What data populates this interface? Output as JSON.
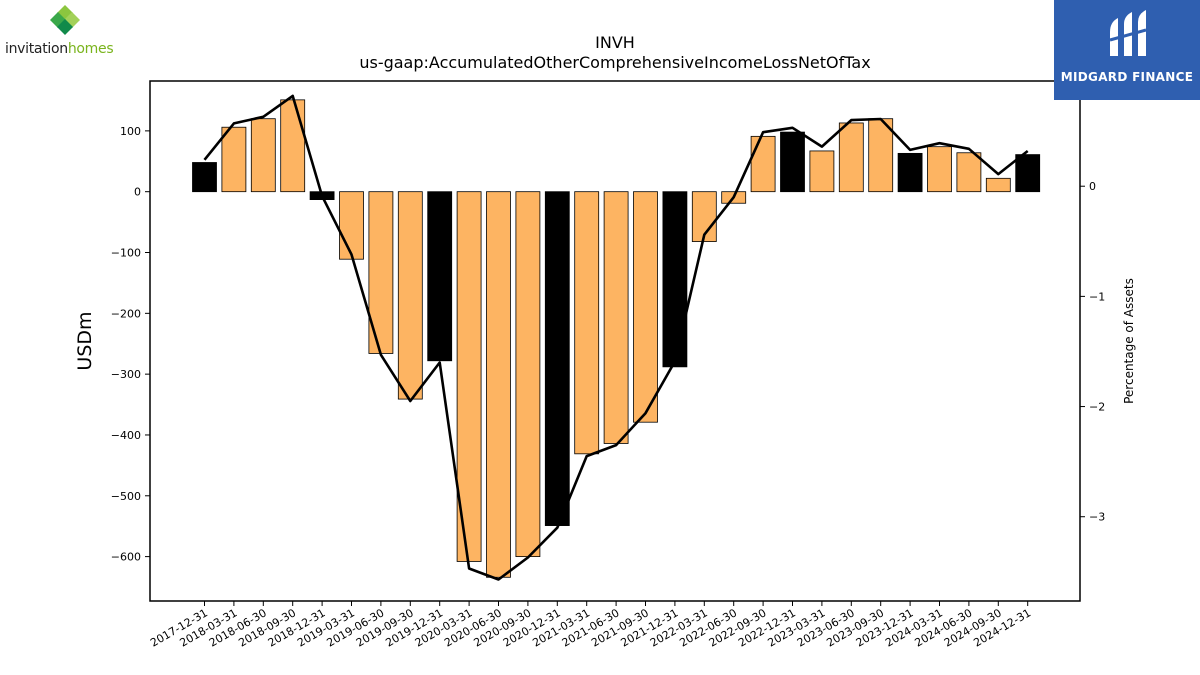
{
  "logos": {
    "left": {
      "word1": "invitation",
      "word2": "homes"
    },
    "right": {
      "text": "MIDGARD FINANCE"
    }
  },
  "chart_data": {
    "type": "bar",
    "title": "INVH",
    "subtitle": "us-gaap:AccumulatedOtherComprehensiveIncomeLossNetOfTax",
    "ylabel": "USDm",
    "y2label": "Percentage of Assets",
    "ylim": [
      -673,
      182
    ],
    "y2lim": [
      -3.765,
      0.955
    ],
    "yticks": [
      100,
      0,
      -100,
      -200,
      -300,
      -400,
      -500,
      -600
    ],
    "ytick_labels": [
      "100",
      "0",
      "−100",
      "−200",
      "−300",
      "−400",
      "−500",
      "−600"
    ],
    "y2ticks": [
      0,
      -1,
      -2,
      -3
    ],
    "y2tick_labels": [
      "0",
      "−1",
      "−2",
      "−3"
    ],
    "grid": false,
    "categories": [
      "2017-12-31",
      "2018-03-31",
      "2018-06-30",
      "2018-09-30",
      "2018-12-31",
      "2019-03-31",
      "2019-06-30",
      "2019-09-30",
      "2019-12-31",
      "2020-03-31",
      "2020-06-30",
      "2020-09-30",
      "2020-12-31",
      "2021-03-31",
      "2021-06-30",
      "2021-09-30",
      "2021-12-31",
      "2022-03-31",
      "2022-06-30",
      "2022-09-30",
      "2022-12-31",
      "2023-03-31",
      "2023-06-30",
      "2023-09-30",
      "2023-12-31",
      "2024-03-31",
      "2024-06-30",
      "2024-09-30",
      "2024-12-31"
    ],
    "series": [
      {
        "kind": "bar",
        "axis": "left",
        "values": [
          48,
          106,
          120,
          151,
          -13,
          -111,
          -266,
          -341,
          -278,
          -608,
          -634,
          -600,
          -549,
          -431,
          -414,
          -379,
          -288,
          -82,
          -19,
          91,
          98,
          67,
          113,
          120,
          63,
          74,
          64,
          22,
          61
        ],
        "year_end_color": "#000000",
        "quarter_color": "#fdb462"
      },
      {
        "kind": "line",
        "axis": "right",
        "values": [
          0.24,
          0.57,
          0.63,
          0.82,
          -0.09,
          -0.62,
          -1.53,
          -1.95,
          -1.6,
          -3.47,
          -3.57,
          -3.37,
          -3.1,
          -2.45,
          -2.35,
          -2.06,
          -1.59,
          -0.44,
          -0.1,
          0.49,
          0.53,
          0.36,
          0.6,
          0.61,
          0.33,
          0.39,
          0.34,
          0.11,
          0.32
        ],
        "color": "#000000"
      }
    ]
  }
}
